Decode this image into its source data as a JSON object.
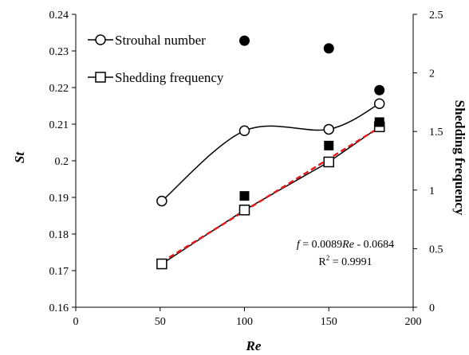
{
  "chart_data": {
    "type": "line",
    "x_label": "Re",
    "y_label_left": "St",
    "y_label_right": "Shedding frequency",
    "x_range": [
      0,
      200
    ],
    "x_ticks": [
      "0",
      "50",
      "100",
      "150",
      "200"
    ],
    "y_left_range": [
      0.16,
      0.24
    ],
    "y_left_ticks": [
      "0.16",
      "0.17",
      "0.18",
      "0.19",
      "0.2",
      "0.21",
      "0.22",
      "0.23",
      "0.24"
    ],
    "y_right_range": [
      0,
      2.5
    ],
    "y_right_ticks": [
      "0",
      "0.5",
      "1",
      "1.5",
      "2",
      "2.5"
    ],
    "grid": false,
    "legend_position": "top-left",
    "series": [
      {
        "name": "Strouhal number",
        "axis": "left",
        "marker": "open-circle",
        "line": "smooth-solid",
        "x": [
          51,
          100,
          150,
          180
        ],
        "y": [
          0.189,
          0.2082,
          0.2086,
          0.2156
        ]
      },
      {
        "name": "Shedding frequency",
        "axis": "right",
        "marker": "open-square",
        "line": "solid",
        "x": [
          51,
          100,
          150,
          180
        ],
        "y": [
          0.37,
          0.83,
          1.24,
          1.54
        ]
      },
      {
        "axis": "left",
        "marker": "filled-circle",
        "x": [
          100,
          150,
          180
        ],
        "y": [
          0.2328,
          0.2307,
          0.2193
        ]
      },
      {
        "axis": "right",
        "marker": "filled-square",
        "x": [
          100,
          150,
          180
        ],
        "y": [
          0.95,
          1.38,
          1.58
        ]
      }
    ],
    "fit_line": {
      "axis": "right",
      "color": "#e31a1c",
      "style": "dashed",
      "slope": 0.0089,
      "intercept": -0.0684,
      "x_range": [
        51,
        180
      ]
    },
    "annotations": {
      "equation_prefix": "f",
      "equation_mid": " = 0.0089",
      "equation_var": "Re",
      "equation_suffix": " - 0.0684",
      "r2_base": "R",
      "r2_exp": "2",
      "r2_value": " = 0.9991"
    }
  }
}
